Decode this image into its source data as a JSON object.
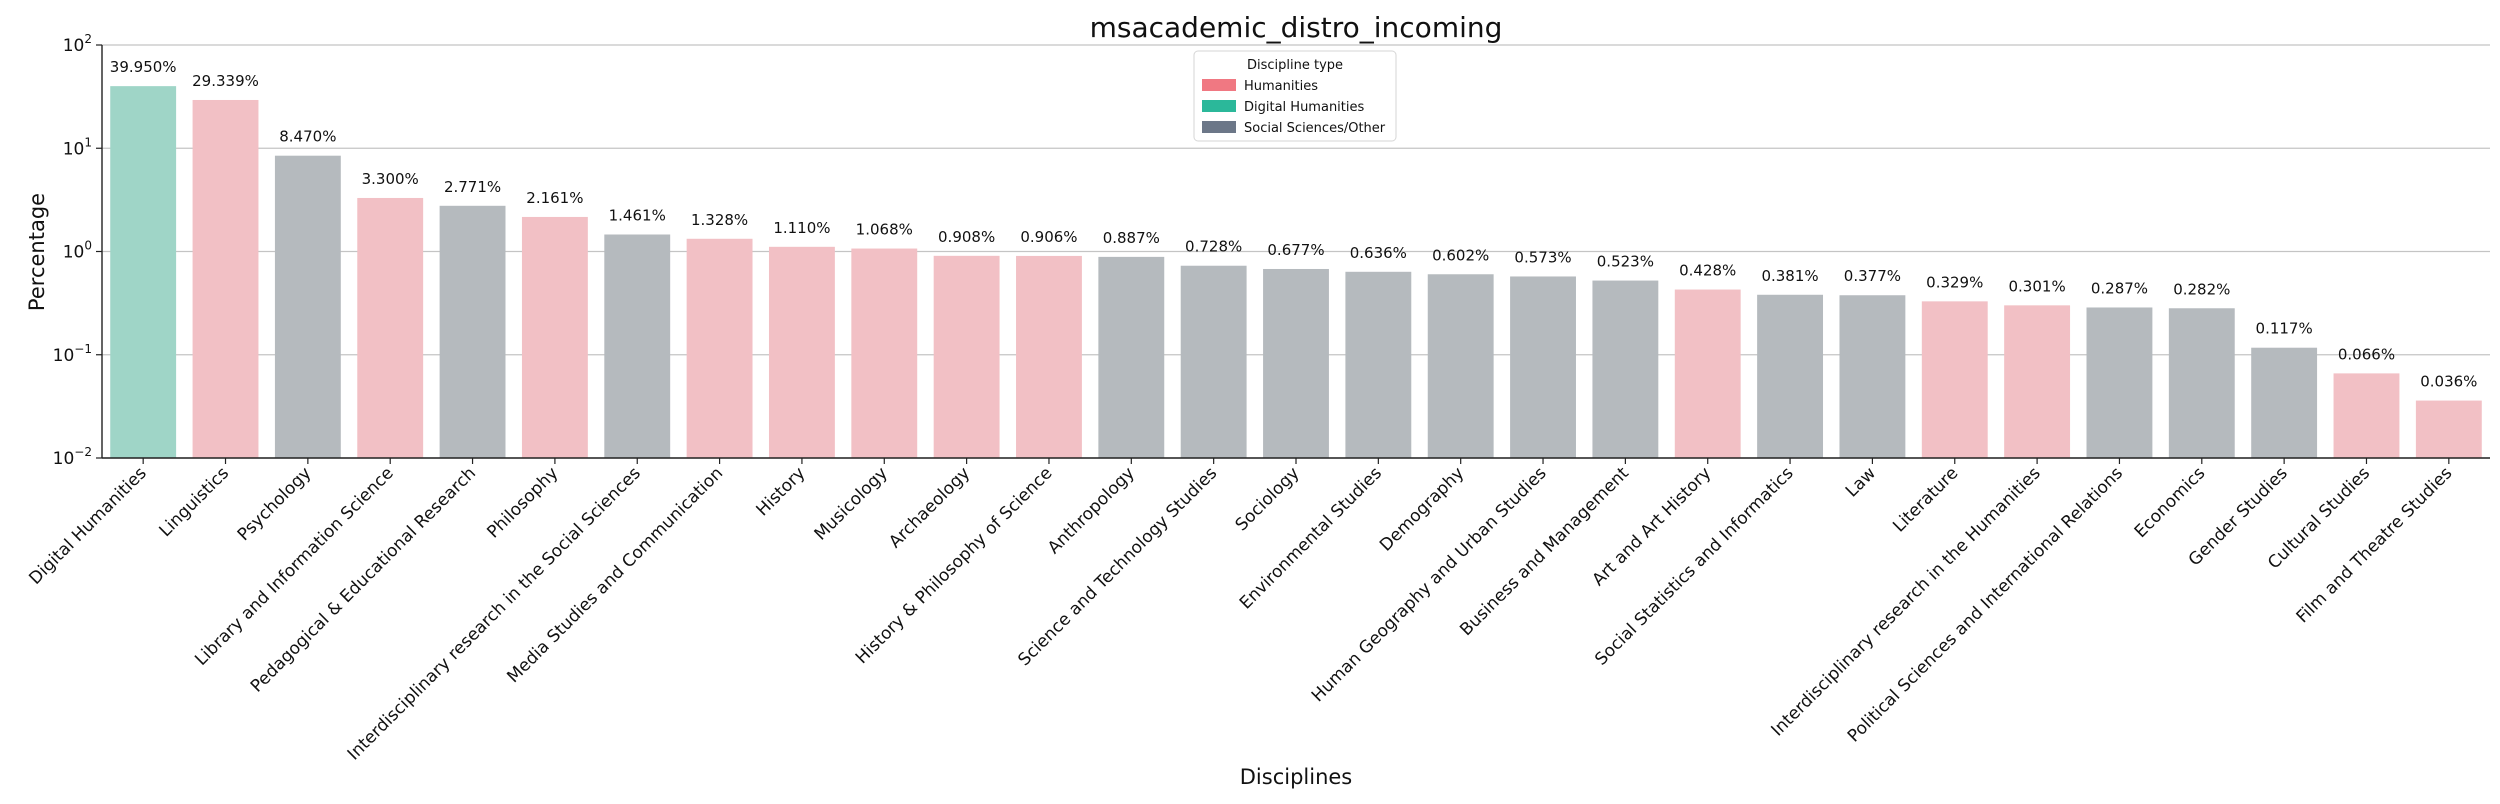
{
  "chart_data": {
    "type": "bar",
    "title": "msacademic_distro_incoming",
    "xlabel": "Disciplines",
    "ylabel": "Percentage",
    "yscale": "log",
    "ylim": [
      0.01,
      100
    ],
    "y_ticks": [
      {
        "value": 0.01,
        "base": "10",
        "exp": "−2"
      },
      {
        "value": 0.1,
        "base": "10",
        "exp": "−1"
      },
      {
        "value": 1,
        "base": "10",
        "exp": "0"
      },
      {
        "value": 10,
        "base": "10",
        "exp": "1"
      },
      {
        "value": 100,
        "base": "10",
        "exp": "2"
      }
    ],
    "grid": "horizontal",
    "legend": {
      "title": "Discipline type",
      "placement": "top-center",
      "entries": [
        {
          "label": "Humanities",
          "color": "#F07882"
        },
        {
          "label": "Digital Humanities",
          "color": "#2BB89A"
        },
        {
          "label": "Social Sciences/Other",
          "color": "#6C7788"
        }
      ]
    },
    "type_colors": {
      "Humanities": "#F2C0C5",
      "Digital Humanities": "#9FD5C7",
      "Social Sciences/Other": "#B5BABE"
    },
    "categories": [
      "Digital Humanities",
      "Linguistics",
      "Psychology",
      "Library and Information Science",
      "Pedagogical & Educational Research",
      "Philosophy",
      "Interdisciplinary research in the Social Sciences",
      "Media Studies and Communication",
      "History",
      "Musicology",
      "Archaeology",
      "History & Philosophy of Science",
      "Anthropology",
      "Science and Technology Studies",
      "Sociology",
      "Environmental Studies",
      "Demography",
      "Human Geography and Urban Studies",
      "Business and Management",
      "Art and Art History",
      "Social Statistics and Informatics",
      "Law",
      "Literature",
      "Interdisciplinary research in the Humanities",
      "Political Sciences and International Relations",
      "Economics",
      "Gender Studies",
      "Cultural Studies",
      "Film and Theatre Studies"
    ],
    "values": [
      39.95,
      29.339,
      8.47,
      3.3,
      2.771,
      2.161,
      1.461,
      1.328,
      1.11,
      1.068,
      0.908,
      0.906,
      0.887,
      0.728,
      0.677,
      0.636,
      0.602,
      0.573,
      0.523,
      0.428,
      0.381,
      0.377,
      0.329,
      0.301,
      0.287,
      0.282,
      0.117,
      0.066,
      0.036
    ],
    "value_labels": [
      "39.950%",
      "29.339%",
      "8.470%",
      "3.300%",
      "2.771%",
      "2.161%",
      "1.461%",
      "1.328%",
      "1.110%",
      "1.068%",
      "0.908%",
      "0.906%",
      "0.887%",
      "0.728%",
      "0.677%",
      "0.636%",
      "0.602%",
      "0.573%",
      "0.523%",
      "0.428%",
      "0.381%",
      "0.377%",
      "0.329%",
      "0.301%",
      "0.287%",
      "0.282%",
      "0.117%",
      "0.066%",
      "0.036%"
    ],
    "types": [
      "Digital Humanities",
      "Humanities",
      "Social Sciences/Other",
      "Humanities",
      "Social Sciences/Other",
      "Humanities",
      "Social Sciences/Other",
      "Humanities",
      "Humanities",
      "Humanities",
      "Humanities",
      "Humanities",
      "Social Sciences/Other",
      "Social Sciences/Other",
      "Social Sciences/Other",
      "Social Sciences/Other",
      "Social Sciences/Other",
      "Social Sciences/Other",
      "Social Sciences/Other",
      "Humanities",
      "Social Sciences/Other",
      "Social Sciences/Other",
      "Humanities",
      "Humanities",
      "Social Sciences/Other",
      "Social Sciences/Other",
      "Social Sciences/Other",
      "Humanities",
      "Humanities"
    ]
  }
}
